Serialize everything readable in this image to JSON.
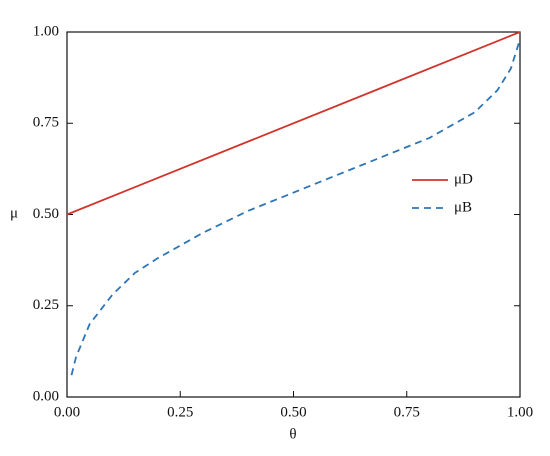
{
  "chart_data": {
    "type": "line",
    "xlabel": "θ",
    "ylabel": "μ",
    "xlim": [
      0,
      1
    ],
    "ylim": [
      0,
      1
    ],
    "xticks": [
      {
        "value": 0,
        "label": "0.00"
      },
      {
        "value": 0.25,
        "label": "0.25"
      },
      {
        "value": 0.5,
        "label": "0.50"
      },
      {
        "value": 0.75,
        "label": "0.75"
      },
      {
        "value": 1,
        "label": "1.00"
      }
    ],
    "yticks": [
      {
        "value": 0,
        "label": "0.00"
      },
      {
        "value": 0.25,
        "label": "0.25"
      },
      {
        "value": 0.5,
        "label": "0.50"
      },
      {
        "value": 0.75,
        "label": "0.75"
      },
      {
        "value": 1,
        "label": "1.00"
      }
    ],
    "legend": "right",
    "series": [
      {
        "name": "μD",
        "color": "#d0342c",
        "style": "solid",
        "x": [
          0,
          1
        ],
        "values": [
          0.5,
          1
        ]
      },
      {
        "name": "μB",
        "color": "#2e75b6",
        "style": "dashed",
        "x": [
          0.01,
          0.02,
          0.05,
          0.1,
          0.15,
          0.2,
          0.3,
          0.4,
          0.5,
          0.6,
          0.7,
          0.8,
          0.9,
          0.95,
          0.98,
          1.0
        ],
        "values": [
          0.06,
          0.11,
          0.2,
          0.28,
          0.34,
          0.38,
          0.45,
          0.51,
          0.56,
          0.61,
          0.66,
          0.71,
          0.78,
          0.84,
          0.9,
          0.98
        ]
      }
    ]
  }
}
